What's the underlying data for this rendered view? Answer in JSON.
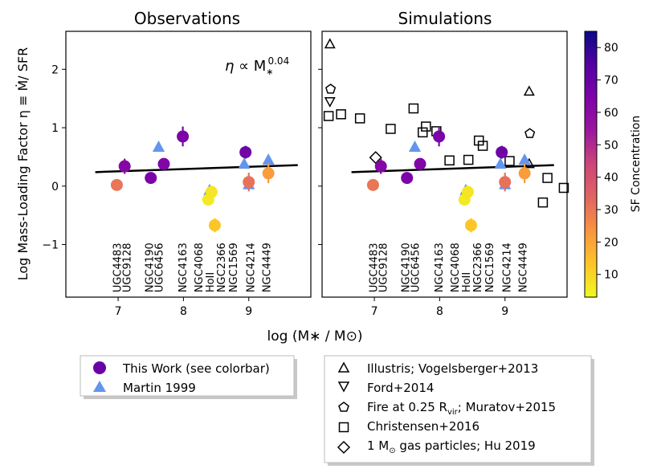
{
  "chart_data": {
    "type": "scatter",
    "ylabel": "Log Mass-Loading Factor η ≡ Ṁ/ SFR",
    "xlabel": "log (M∗ / M⊙)",
    "xlim": [
      6.2,
      9.95
    ],
    "ylim": [
      -1.9,
      2.65
    ],
    "xticks": [
      7,
      8,
      9
    ],
    "yticks": [
      -1,
      0,
      1,
      2
    ],
    "xtick_labels": [
      "7",
      "8",
      "9"
    ],
    "ytick_labels": [
      "−1",
      "0",
      "1",
      "2"
    ],
    "colorbar": {
      "label": "SF Concentration",
      "range": [
        3,
        85
      ],
      "ticks": [
        10,
        20,
        30,
        40,
        50,
        60,
        70,
        80
      ],
      "tick_labels": [
        "10",
        "20",
        "30",
        "40",
        "50",
        "60",
        "70",
        "80"
      ],
      "colormap": "plasma"
    },
    "fit": {
      "label": "η ∝ M∗^0.04",
      "prefix": "η ∝ M",
      "sub": "∗",
      "exp": "0.04",
      "x": [
        6.65,
        9.75
      ],
      "y": [
        0.24,
        0.36
      ]
    },
    "galaxies": [
      "UGC4483",
      "UGC9128",
      "NGC4190",
      "UGC6456",
      "NGC4163",
      "NGC4068",
      "HoII",
      "NGC2366",
      "NGC1569",
      "NGC4214",
      "NGC4449"
    ],
    "panels": [
      {
        "title": "Observations",
        "this_work": [
          {
            "x": 7.1,
            "y": 0.34,
            "c": 62,
            "err": 0.13
          },
          {
            "x": 6.98,
            "y": 0.02,
            "c": 30
          },
          {
            "x": 7.5,
            "y": 0.14,
            "c": 65
          },
          {
            "x": 7.7,
            "y": 0.38,
            "c": 63
          },
          {
            "x": 7.99,
            "y": 0.85,
            "c": 65,
            "err": 0.17
          },
          {
            "x": 8.38,
            "y": -0.23,
            "c": 6
          },
          {
            "x": 8.43,
            "y": -0.1,
            "c": 7
          },
          {
            "x": 8.48,
            "y": -0.67,
            "c": 13,
            "err": 0.12
          },
          {
            "x": 8.95,
            "y": 0.58,
            "c": 68,
            "err": 0.11
          },
          {
            "x": 9.0,
            "y": 0.07,
            "c": 31,
            "err": 0.16
          },
          {
            "x": 9.3,
            "y": 0.22,
            "c": 22,
            "err": 0.17
          }
        ],
        "martin1999": [
          {
            "x": 7.62,
            "y": 0.67
          },
          {
            "x": 8.4,
            "y": -0.07
          },
          {
            "x": 8.93,
            "y": 0.38
          },
          {
            "x": 9.0,
            "y": 0.03
          },
          {
            "x": 9.3,
            "y": 0.45
          }
        ]
      },
      {
        "title": "Simulations",
        "this_work": [
          {
            "x": 7.1,
            "y": 0.34,
            "c": 62,
            "err": 0.13
          },
          {
            "x": 6.98,
            "y": 0.02,
            "c": 30
          },
          {
            "x": 7.5,
            "y": 0.14,
            "c": 65
          },
          {
            "x": 7.7,
            "y": 0.38,
            "c": 63
          },
          {
            "x": 7.99,
            "y": 0.85,
            "c": 65,
            "err": 0.17
          },
          {
            "x": 8.38,
            "y": -0.23,
            "c": 6
          },
          {
            "x": 8.43,
            "y": -0.1,
            "c": 7
          },
          {
            "x": 8.48,
            "y": -0.67,
            "c": 13,
            "err": 0.12
          },
          {
            "x": 8.95,
            "y": 0.58,
            "c": 68,
            "err": 0.11
          },
          {
            "x": 9.0,
            "y": 0.07,
            "c": 31,
            "err": 0.16
          },
          {
            "x": 9.3,
            "y": 0.22,
            "c": 22,
            "err": 0.17
          }
        ],
        "martin1999": [
          {
            "x": 7.62,
            "y": 0.67
          },
          {
            "x": 8.4,
            "y": -0.07
          },
          {
            "x": 8.93,
            "y": 0.38
          },
          {
            "x": 9.0,
            "y": 0.03
          },
          {
            "x": 9.3,
            "y": 0.45
          }
        ],
        "illustris": [
          {
            "x": 6.32,
            "y": 2.43
          },
          {
            "x": 9.37,
            "y": 1.62
          },
          {
            "x": 9.37,
            "y": 0.38
          }
        ],
        "ford2014": [
          {
            "x": 6.32,
            "y": 1.45
          }
        ],
        "fire": [
          {
            "x": 6.33,
            "y": 1.66
          },
          {
            "x": 9.38,
            "y": 0.9
          }
        ],
        "christensen2016": [
          {
            "x": 6.3,
            "y": 1.2
          },
          {
            "x": 6.49,
            "y": 1.23
          },
          {
            "x": 6.78,
            "y": 1.16
          },
          {
            "x": 7.25,
            "y": 0.98
          },
          {
            "x": 7.6,
            "y": 1.33
          },
          {
            "x": 7.74,
            "y": 0.92
          },
          {
            "x": 7.79,
            "y": 1.02
          },
          {
            "x": 7.95,
            "y": 0.94
          },
          {
            "x": 8.15,
            "y": 0.44
          },
          {
            "x": 8.44,
            "y": 0.45
          },
          {
            "x": 8.6,
            "y": 0.78
          },
          {
            "x": 8.66,
            "y": 0.69
          },
          {
            "x": 9.07,
            "y": 0.43
          },
          {
            "x": 9.65,
            "y": 0.14
          },
          {
            "x": 9.58,
            "y": -0.28
          },
          {
            "x": 9.9,
            "y": -0.03
          }
        ],
        "hu2019": [
          {
            "x": 7.02,
            "y": 0.49
          }
        ]
      }
    ]
  },
  "legend_left": {
    "items": [
      {
        "label": "This Work (see colorbar)",
        "color": "#6a00a8"
      },
      {
        "label": "Martin 1999",
        "color": "#6495ed"
      }
    ]
  },
  "legend_right": {
    "items": [
      {
        "label": "Illustris; Vogelsberger+2013"
      },
      {
        "label": "Ford+2014"
      },
      {
        "label_main": "Fire at 0.25 R",
        "label_sub": "vir",
        "label_tail": "; Muratov+2015"
      },
      {
        "label": "Christensen+2016"
      },
      {
        "label_main": "1 M",
        "label_sub": "⊙",
        "label_tail": " gas particles; Hu 2019"
      }
    ]
  },
  "colors": {
    "martin": "#6495ed",
    "fit": "#000000"
  }
}
